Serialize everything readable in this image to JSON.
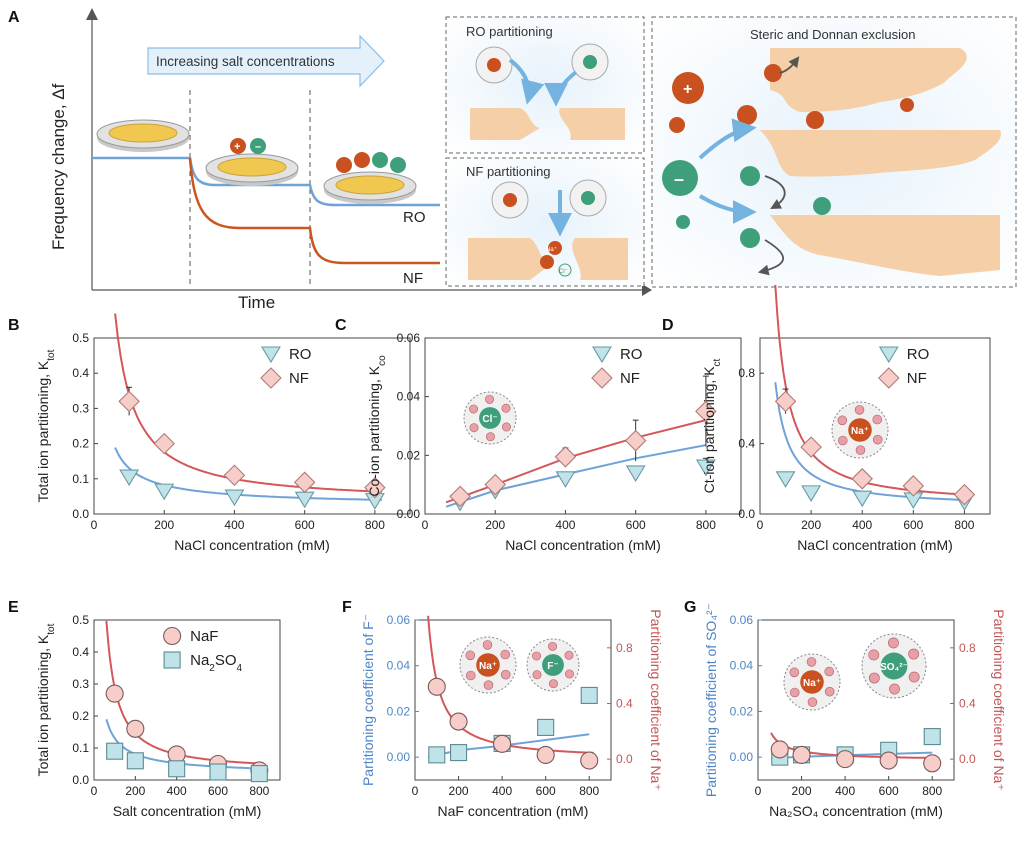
{
  "colors": {
    "ro_blue": "#6fa3d8",
    "nf_red": "#d4575c",
    "nf_orange": "#c9571f",
    "ro_fill": "#bfe3e8",
    "nf_fill": "#f6cdc9",
    "ion_red": "#c9501f",
    "ion_green": "#3f9f7a",
    "membrane": "#f5cfa8",
    "arrow_blue": "#74b3e0",
    "axis_blue": "#4f86c6",
    "axis_red": "#c25757"
  },
  "panelA": {
    "label": "A",
    "ylabel": "Frequency change, Δf",
    "xlabel": "Time",
    "arrow_text": "Increasing salt concentrations",
    "ro_label": "RO",
    "nf_label": "NF",
    "box1_title": "RO partitioning",
    "box2_title": "NF partitioning",
    "box3_title": "Steric and Donnan exclusion",
    "na_label": "Na⁺",
    "cl_label": "Cl⁻"
  },
  "chart_data": [
    {
      "id": "B",
      "type": "scatter",
      "xlabel": "NaCl concentration (mM)",
      "ylabel": "Total ion partitioning, K",
      "ylabel_sub": "tot",
      "xlim": [
        0,
        900
      ],
      "ylim": [
        0,
        0.5
      ],
      "xticks": [
        0,
        200,
        400,
        600,
        800
      ],
      "yticks": [
        0.0,
        0.1,
        0.2,
        0.3,
        0.4,
        0.5
      ],
      "xtick_labels": [
        "0",
        "200",
        "400",
        "600",
        "800"
      ],
      "ytick_labels": [
        "0.0",
        "0.1",
        "0.2",
        "0.3",
        "0.4",
        "0.5"
      ],
      "series": [
        {
          "name": "RO",
          "marker": "triangle",
          "x": [
            100,
            200,
            400,
            600,
            800
          ],
          "y": [
            0.105,
            0.065,
            0.048,
            0.042,
            0.038
          ],
          "err": [
            0.01,
            0.01,
            0.012,
            0.01,
            0.01
          ],
          "fit": {
            "a": 0.12,
            "p": 0.85,
            "c": 0.04
          }
        },
        {
          "name": "NF",
          "marker": "diamond",
          "x": [
            100,
            200,
            400,
            600,
            800
          ],
          "y": [
            0.32,
            0.2,
            0.11,
            0.09,
            0.075
          ],
          "err": [
            0.04,
            0.015,
            0.015,
            0.015,
            0.012
          ],
          "fit": {
            "a": 0.34,
            "p": 1.1,
            "c": 0.06
          }
        }
      ]
    },
    {
      "id": "C",
      "type": "scatter",
      "xlabel": "NaCl concentration (mM)",
      "ylabel": "Co-ion partitioning, K",
      "ylabel_sub": "co",
      "xlim": [
        0,
        900
      ],
      "ylim": [
        0,
        0.06
      ],
      "xticks": [
        0,
        200,
        400,
        600,
        800
      ],
      "yticks": [
        0.0,
        0.02,
        0.04,
        0.06
      ],
      "xtick_labels": [
        "0",
        "200",
        "400",
        "600",
        "800"
      ],
      "ytick_labels": [
        "0.00",
        "0.02",
        "0.04",
        "0.06"
      ],
      "ion_label": "Cl⁻",
      "series": [
        {
          "name": "RO",
          "marker": "triangle",
          "x": [
            100,
            200,
            400,
            600,
            800
          ],
          "y": [
            0.004,
            0.008,
            0.012,
            0.014,
            0.016
          ],
          "err": [
            0.001,
            0.001,
            0.002,
            0.002,
            0.003
          ],
          "fitpts": [
            [
              60,
              0.0025
            ],
            [
              200,
              0.008
            ],
            [
              400,
              0.0135
            ],
            [
              600,
              0.019
            ],
            [
              800,
              0.0235
            ]
          ]
        },
        {
          "name": "NF",
          "marker": "diamond",
          "x": [
            100,
            200,
            400,
            600,
            800
          ],
          "y": [
            0.006,
            0.01,
            0.0195,
            0.025,
            0.035
          ],
          "err": [
            0.002,
            0.002,
            0.003,
            0.007,
            0.012
          ],
          "fitpts": [
            [
              60,
              0.004
            ],
            [
              200,
              0.01
            ],
            [
              400,
              0.019
            ],
            [
              600,
              0.026
            ],
            [
              800,
              0.032
            ]
          ]
        }
      ]
    },
    {
      "id": "D",
      "type": "scatter",
      "xlabel": "NaCl concentration (mM)",
      "ylabel": "Ct-ion partitioning, K",
      "ylabel_sub": "ct",
      "xlim": [
        0,
        900
      ],
      "ylim": [
        0,
        1.0
      ],
      "xticks": [
        0,
        200,
        400,
        600,
        800
      ],
      "yticks": [
        0.0,
        0.4,
        0.8
      ],
      "xtick_labels": [
        "0",
        "200",
        "400",
        "600",
        "800"
      ],
      "ytick_labels": [
        "0.0",
        "0.4",
        "0.8"
      ],
      "ion_label": "Na⁺",
      "series": [
        {
          "name": "RO",
          "marker": "triangle",
          "x": [
            100,
            200,
            400,
            600,
            800
          ],
          "y": [
            0.2,
            0.12,
            0.09,
            0.08,
            0.07
          ],
          "err": [
            0.02,
            0.02,
            0.02,
            0.02,
            0.02
          ],
          "fit": {
            "a": 0.45,
            "p": 1.1,
            "c": 0.07
          }
        },
        {
          "name": "NF",
          "marker": "diamond",
          "x": [
            100,
            200,
            400,
            600,
            800
          ],
          "y": [
            0.64,
            0.38,
            0.2,
            0.16,
            0.11
          ],
          "err": [
            0.07,
            0.03,
            0.03,
            0.02,
            0.02
          ],
          "fit": {
            "a": 0.75,
            "p": 1.2,
            "c": 0.1
          }
        }
      ]
    },
    {
      "id": "E",
      "type": "scatter",
      "xlabel": "Salt concentration (mM)",
      "ylabel": "Total ion partitioning, K",
      "ylabel_sub": "tot",
      "xlim": [
        0,
        900
      ],
      "ylim": [
        0,
        0.5
      ],
      "xticks": [
        0,
        200,
        400,
        600,
        800
      ],
      "yticks": [
        0.0,
        0.1,
        0.2,
        0.3,
        0.4,
        0.5
      ],
      "xtick_labels": [
        "0",
        "200",
        "400",
        "600",
        "800"
      ],
      "ytick_labels": [
        "0.0",
        "0.1",
        "0.2",
        "0.3",
        "0.4",
        "0.5"
      ],
      "series": [
        {
          "name": "NaF",
          "marker": "circle",
          "x": [
            100,
            200,
            400,
            600,
            800
          ],
          "y": [
            0.27,
            0.16,
            0.08,
            0.05,
            0.03
          ],
          "err": [
            0.02,
            0.02,
            0.015,
            0.015,
            0.012
          ],
          "fit": {
            "a": 0.29,
            "p": 1.15,
            "c": 0.05
          }
        },
        {
          "name": "Na2SO4",
          "marker": "square",
          "x": [
            100,
            200,
            400,
            600,
            800
          ],
          "y": [
            0.09,
            0.06,
            0.035,
            0.025,
            0.02
          ],
          "err": [
            0.01,
            0.015,
            0.012,
            0.01,
            0.01
          ],
          "fit": {
            "a": 0.13,
            "p": 0.8,
            "c": 0.025
          }
        }
      ]
    },
    {
      "id": "F",
      "type": "scatter",
      "xlabel": "NaF concentration (mM)",
      "ylabel": "Partitioning coefficient of F⁻",
      "ylabel_right": "Partitioning coefficient of Na⁺",
      "xlim": [
        0,
        900
      ],
      "ylim": [
        -0.01,
        0.06
      ],
      "ylim_right": [
        -0.15,
        1.0
      ],
      "xticks": [
        0,
        200,
        400,
        600,
        800
      ],
      "yticks": [
        0.0,
        0.02,
        0.04,
        0.06
      ],
      "yticks_right": [
        0.0,
        0.4,
        0.8
      ],
      "xtick_labels": [
        "0",
        "200",
        "400",
        "600",
        "800"
      ],
      "ytick_labels": [
        "0.00",
        "0.02",
        "0.04",
        "0.06"
      ],
      "ytick_labels_right": [
        "0.0",
        "0.4",
        "0.8"
      ],
      "ion_labels": [
        "Na⁺",
        "F⁻"
      ],
      "series": [
        {
          "name": "F⁻",
          "marker": "square",
          "axis": "left",
          "x": [
            100,
            200,
            400,
            600,
            800
          ],
          "y": [
            0.001,
            0.002,
            0.006,
            0.013,
            0.027
          ],
          "err": [
            0.002,
            0.002,
            0.001,
            0.002,
            0.002
          ],
          "fitpts": [
            [
              60,
              0.0
            ],
            [
              200,
              0.003
            ],
            [
              400,
              0.005
            ],
            [
              600,
              0.0075
            ],
            [
              800,
              0.01
            ]
          ]
        },
        {
          "name": "Na⁺",
          "marker": "circle",
          "axis": "right",
          "x": [
            100,
            200,
            400,
            600,
            800
          ],
          "y": [
            0.52,
            0.27,
            0.11,
            0.03,
            -0.01
          ],
          "err": [
            0.04,
            0.04,
            0.04,
            0.04,
            0.04
          ],
          "fit": {
            "a": 0.62,
            "p": 1.2,
            "c": 0.0
          }
        }
      ]
    },
    {
      "id": "G",
      "type": "scatter",
      "xlabel": "Na₂SO₄ concentration (mM)",
      "ylabel": "Partitioning coefficient of SO₄²⁻",
      "ylabel_right": "Partitioning coefficient of Na⁺",
      "xlim": [
        0,
        900
      ],
      "ylim": [
        -0.01,
        0.06
      ],
      "ylim_right": [
        -0.15,
        1.0
      ],
      "xticks": [
        0,
        200,
        400,
        600,
        800
      ],
      "yticks": [
        0.0,
        0.02,
        0.04,
        0.06
      ],
      "yticks_right": [
        0.0,
        0.4,
        0.8
      ],
      "xtick_labels": [
        "0",
        "200",
        "400",
        "600",
        "800"
      ],
      "ytick_labels": [
        "0.00",
        "0.02",
        "0.04",
        "0.06"
      ],
      "ytick_labels_right": [
        "0.0",
        "0.4",
        "0.8"
      ],
      "ion_labels": [
        "Na⁺",
        "SO₄²⁻"
      ],
      "series": [
        {
          "name": "SO₄²⁻",
          "marker": "square",
          "axis": "left",
          "x": [
            100,
            200,
            400,
            600,
            800
          ],
          "y": [
            0.0,
            0.001,
            0.001,
            0.003,
            0.009
          ],
          "err": [
            0.002,
            0.002,
            0.002,
            0.002,
            0.002
          ],
          "fitpts": [
            [
              60,
              -0.0005
            ],
            [
              200,
              0.0002
            ],
            [
              400,
              0.0008
            ],
            [
              600,
              0.0014
            ],
            [
              800,
              0.002
            ]
          ]
        },
        {
          "name": "Na⁺",
          "marker": "circle",
          "axis": "right",
          "x": [
            100,
            200,
            400,
            600,
            800
          ],
          "y": [
            0.07,
            0.03,
            0.0,
            -0.01,
            -0.03
          ],
          "err": [
            0.04,
            0.04,
            0.04,
            0.04,
            0.04
          ],
          "fit": {
            "a": 0.14,
            "p": 0.9,
            "c": -0.02
          }
        }
      ]
    }
  ]
}
